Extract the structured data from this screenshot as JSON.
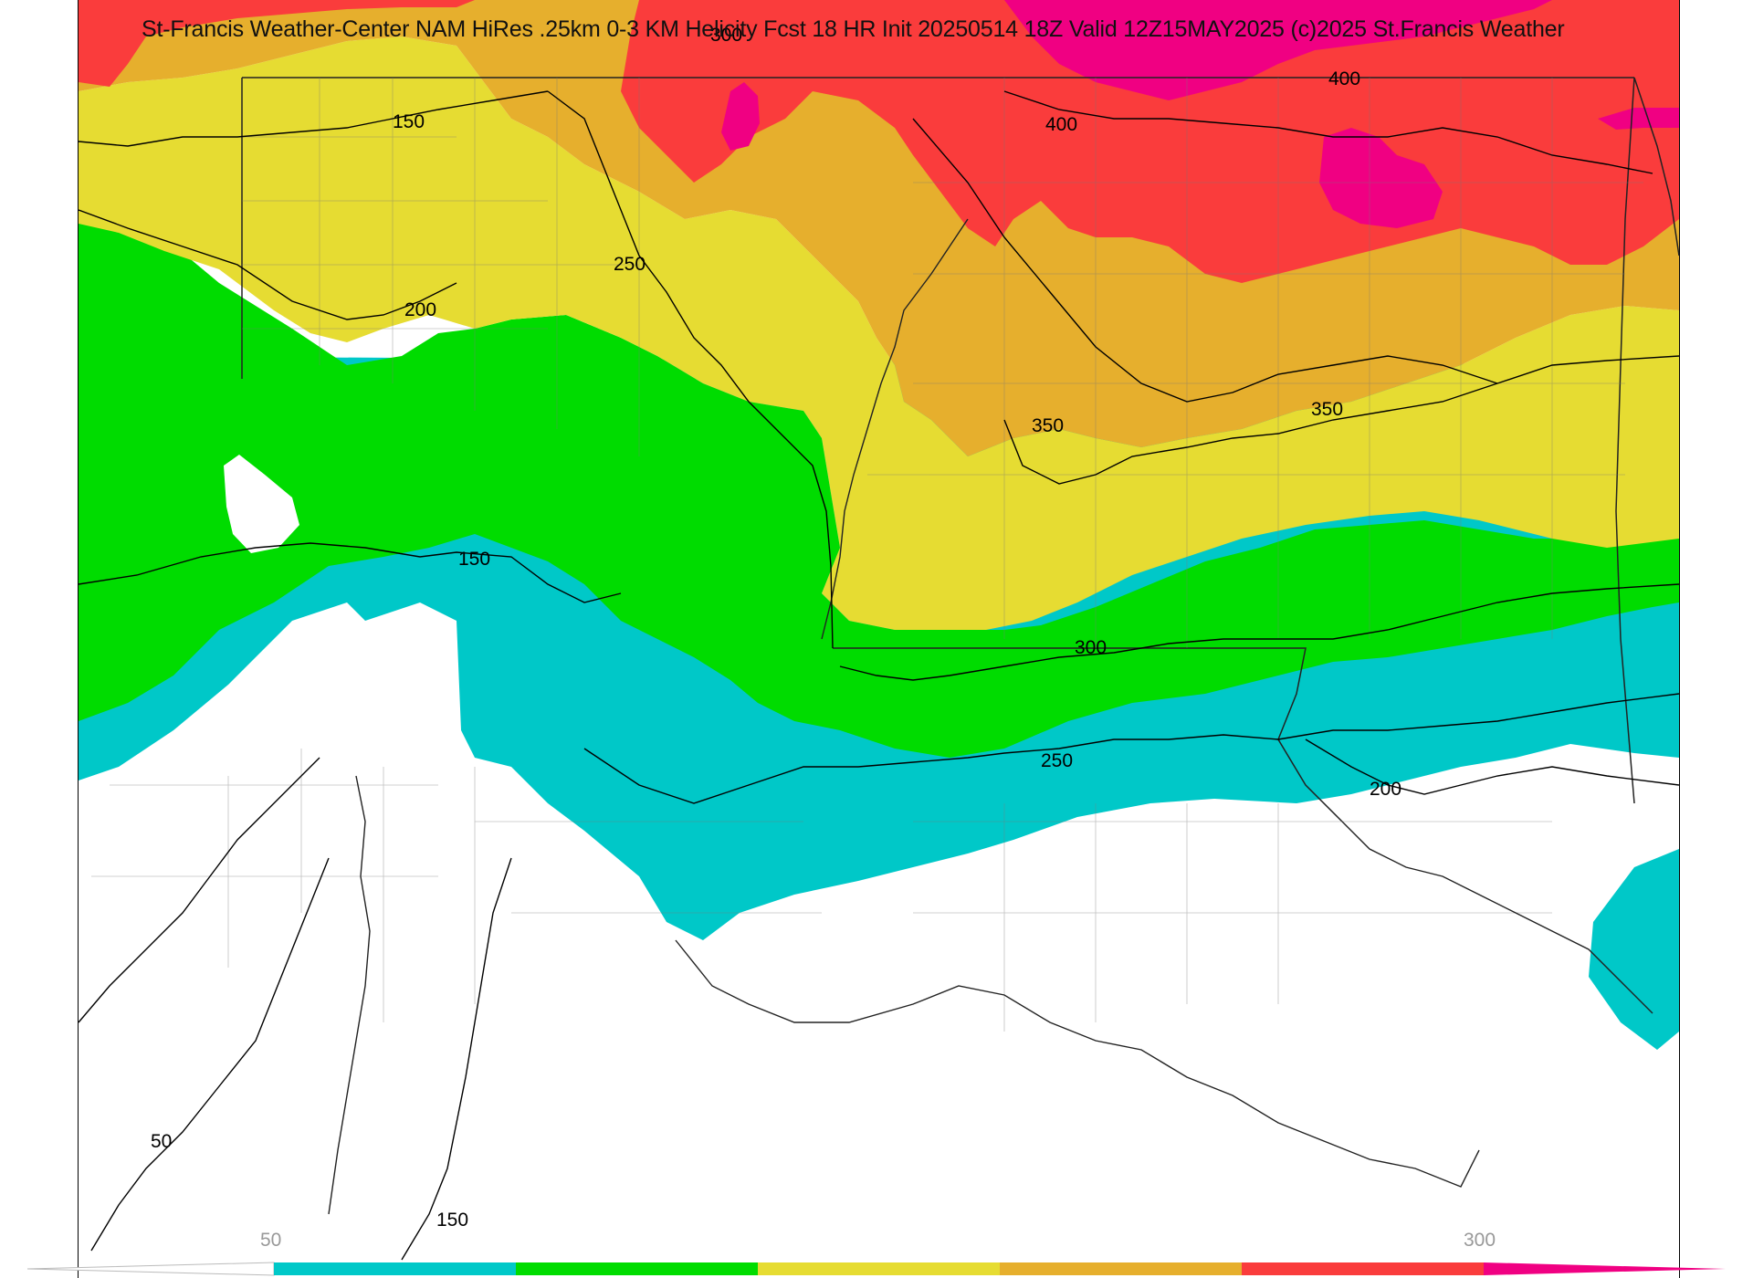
{
  "map": {
    "title": "St-Francis Weather-Center NAM HiRes .25km 0-3 KM Helicity Fcst 18 HR Init 20250514 18Z  Valid 12Z15MAY2025   (c)2025 St.Francis Weather",
    "contour_labels": [
      "300",
      "400",
      "150",
      "400",
      "250",
      "200",
      "350",
      "350",
      "150",
      "300",
      "250",
      "200",
      "50",
      "150"
    ],
    "legend": {
      "tick_labels": [
        "50",
        "300"
      ],
      "colors": {
        "below": "#ffffff",
        "band_50": "#00c8c8",
        "band_100": "#00dc00",
        "band_150": "#e6dc32",
        "band_200": "#e6af2d",
        "band_250": "#fa3c3c",
        "band_300": "#f00082"
      }
    }
  }
}
